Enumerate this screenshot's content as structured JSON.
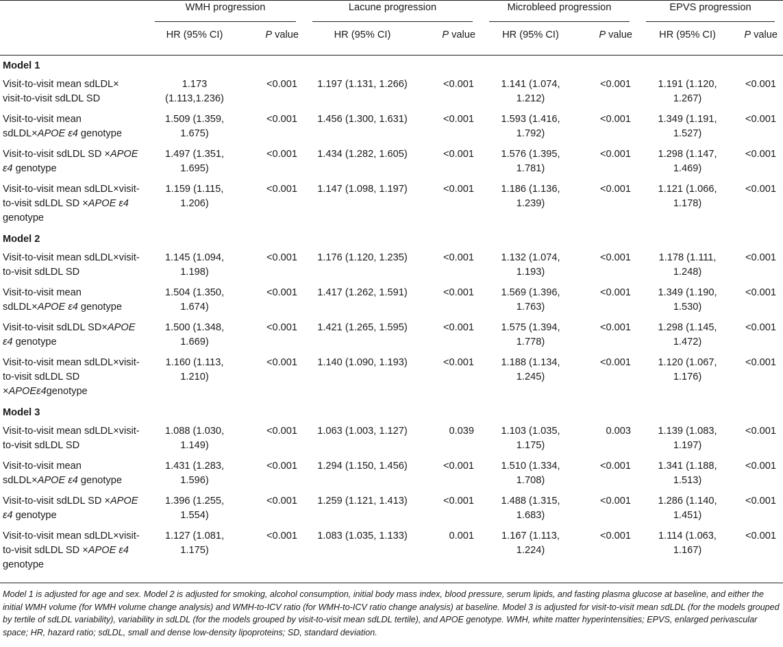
{
  "table": {
    "groups": [
      {
        "name": "WMH progression"
      },
      {
        "name": "Lacune progression"
      },
      {
        "name": "Microbleed progression"
      },
      {
        "name": "EPVS progression"
      }
    ],
    "subheaders": {
      "hr": "HR (95% CI)",
      "p_italic": "P",
      "p_rest": " value"
    },
    "models": [
      {
        "title": "Model 1",
        "rows": [
          {
            "label_plain": "Visit-to-visit mean sdLDL× visit-to-visit sdLDL SD",
            "label_ital": "",
            "label_tail": "",
            "values": [
              "1.173 (1.113,1.236)",
              "<0.001",
              "1.197 (1.131, 1.266)",
              "<0.001",
              "1.141 (1.074, 1.212)",
              "<0.001",
              "1.191 (1.120, 1.267)",
              "<0.001"
            ]
          },
          {
            "label_plain": "Visit-to-visit mean sdLDL×",
            "label_ital": "APOE ε4",
            "label_tail": " genotype",
            "values": [
              "1.509 (1.359, 1.675)",
              "<0.001",
              "1.456 (1.300, 1.631)",
              "<0.001",
              "1.593 (1.416, 1.792)",
              "<0.001",
              "1.349 (1.191, 1.527)",
              "<0.001"
            ]
          },
          {
            "label_plain": "Visit-to-visit sdLDL SD ×",
            "label_ital": "APOE ε4",
            "label_tail": " genotype",
            "values": [
              "1.497 (1.351, 1.695)",
              "<0.001",
              "1.434 (1.282, 1.605)",
              "<0.001",
              "1.576 (1.395, 1.781)",
              "<0.001",
              "1.298 (1.147, 1.469)",
              "<0.001"
            ]
          },
          {
            "label_plain": "Visit-to-visit mean sdLDL×visit-to-visit sdLDL SD ×",
            "label_ital": "APOE ε4",
            "label_tail": " genotype",
            "values": [
              "1.159 (1.115, 1.206)",
              "<0.001",
              "1.147 (1.098, 1.197)",
              "<0.001",
              "1.186 (1.136, 1.239)",
              "<0.001",
              "1.121 (1.066, 1.178)",
              "<0.001"
            ]
          }
        ]
      },
      {
        "title": "Model 2",
        "rows": [
          {
            "label_plain": "Visit-to-visit mean sdLDL×visit-to-visit sdLDL SD",
            "label_ital": "",
            "label_tail": "",
            "values": [
              "1.145 (1.094, 1.198)",
              "<0.001",
              "1.176 (1.120, 1.235)",
              "<0.001",
              "1.132 (1.074, 1.193)",
              "<0.001",
              "1.178 (1.111, 1.248)",
              "<0.001"
            ]
          },
          {
            "label_plain": "Visit-to-visit mean sdLDL×",
            "label_ital": "APOE ε4",
            "label_tail": " genotype",
            "values": [
              "1.504 (1.350, 1.674)",
              "<0.001",
              "1.417 (1.262, 1.591)",
              "<0.001",
              "1.569 (1.396, 1.763)",
              "<0.001",
              "1.349 (1.190, 1.530)",
              "<0.001"
            ]
          },
          {
            "label_plain": "Visit-to-visit sdLDL SD×",
            "label_ital": "APOE ε4",
            "label_tail": " genotype",
            "values": [
              "1.500 (1.348, 1.669)",
              "<0.001",
              "1.421 (1.265, 1.595)",
              "<0.001",
              "1.575 (1.394, 1.778)",
              "<0.001",
              "1.298 (1.145, 1.472)",
              "<0.001"
            ]
          },
          {
            "label_plain": "Visit-to-visit mean sdLDL×visit-to-visit sdLDL SD ×",
            "label_ital": "APOEε4",
            "label_tail": "genotype",
            "values": [
              "1.160 (1.113, 1.210)",
              "<0.001",
              "1.140 (1.090, 1.193)",
              "<0.001",
              "1.188 (1.134, 1.245)",
              "<0.001",
              "1.120 (1.067, 1.176)",
              "<0.001"
            ]
          }
        ]
      },
      {
        "title": "Model 3",
        "rows": [
          {
            "label_plain": "Visit-to-visit mean sdLDL×visit-to-visit sdLDL SD",
            "label_ital": "",
            "label_tail": "",
            "values": [
              "1.088 (1.030, 1.149)",
              "<0.001",
              "1.063 (1.003, 1.127)",
              "0.039",
              "1.103 (1.035, 1.175)",
              "0.003",
              "1.139 (1.083, 1.197)",
              "<0.001"
            ]
          },
          {
            "label_plain": "Visit-to-visit mean sdLDL×",
            "label_ital": "APOE ε4",
            "label_tail": " genotype",
            "values": [
              "1.431 (1.283, 1.596)",
              "<0.001",
              "1.294 (1.150, 1.456)",
              "<0.001",
              "1.510 (1.334, 1.708)",
              "<0.001",
              "1.341 (1.188, 1.513)",
              "<0.001"
            ]
          },
          {
            "label_plain": "Visit-to-visit sdLDL SD ×",
            "label_ital": "APOE ε4",
            "label_tail": " genotype",
            "values": [
              "1.396 (1.255, 1.554)",
              "<0.001",
              "1.259 (1.121, 1.413)",
              "<0.001",
              "1.488 (1.315, 1.683)",
              "<0.001",
              "1.286 (1.140, 1.451)",
              "<0.001"
            ]
          },
          {
            "label_plain": "Visit-to-visit mean sdLDL×visit-to-visit sdLDL SD ×",
            "label_ital": "APOE ε4",
            "label_tail": " genotype",
            "values": [
              "1.127 (1.081, 1.175)",
              "<0.001",
              "1.083 (1.035, 1.133)",
              "0.001",
              "1.167 (1.113, 1.224)",
              "<0.001",
              "1.114 (1.063, 1.167)",
              "<0.001"
            ]
          }
        ]
      }
    ]
  },
  "footnote": "Model 1 is adjusted for age and sex. Model 2 is adjusted for smoking, alcohol consumption, initial body mass index, blood pressure, serum lipids, and fasting plasma glucose at baseline, and either the initial WMH volume (for WMH volume change analysis) and WMH-to-ICV ratio (for WMH-to-ICV ratio change analysis) at baseline. Model 3 is adjusted for visit-to-visit mean sdLDL (for the models grouped by tertile of sdLDL variability), variability in sdLDL (for the models grouped by visit-to-visit mean sdLDL tertile), and APOE genotype. WMH, white matter hyperintensities; EPVS, enlarged perivascular space; HR, hazard ratio; sdLDL, small and dense low-density lipoproteins; SD, standard deviation."
}
